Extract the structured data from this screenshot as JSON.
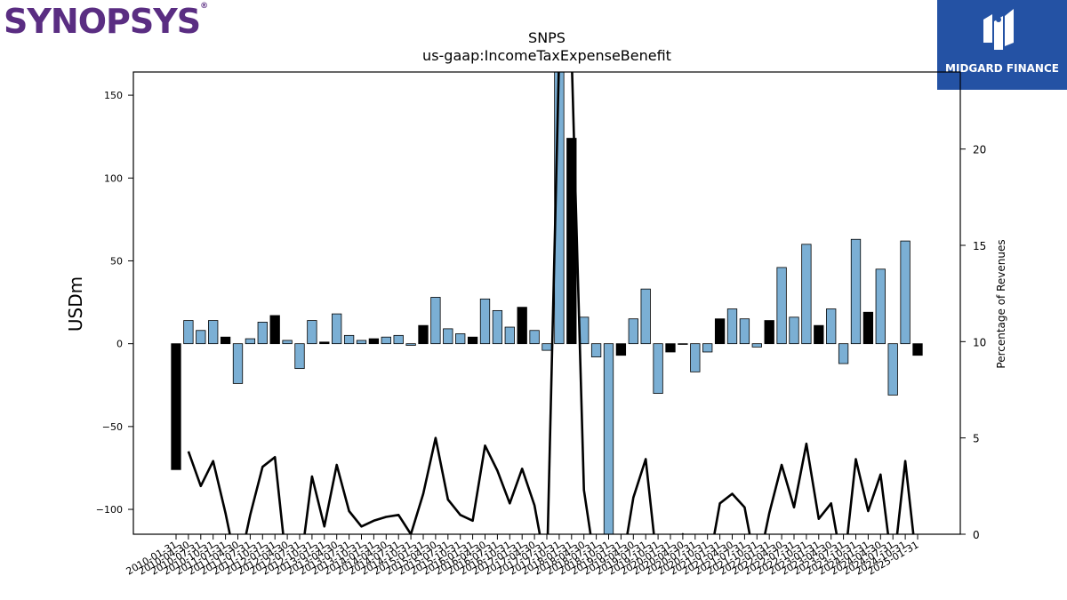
{
  "header": {
    "company_logo_text": "SYNOPSYS",
    "company_logo_mark": "®",
    "badge_text": "MIDGARD FINANCE"
  },
  "chart_data": {
    "type": "bar",
    "title": "SNPS",
    "subtitle": "us-gaap:IncomeTaxExpenseBenefit",
    "ylabel": "USDm",
    "y2label": "Percentage of Revenues",
    "ylim": [
      -115,
      164
    ],
    "y2lim": [
      0,
      24
    ],
    "yticks": [
      -100,
      -50,
      0,
      50,
      100,
      150
    ],
    "ytick_labels": [
      "−100",
      "−50",
      "0",
      "50",
      "100",
      "150"
    ],
    "y2ticks": [
      0,
      5,
      10,
      15,
      20
    ],
    "categories": [
      "2010-01-31",
      "2010-04-30",
      "2010-07-31",
      "2010-10-31",
      "2011-01-31",
      "2011-04-30",
      "2011-07-31",
      "2011-10-31",
      "2012-01-31",
      "2012-04-30",
      "2012-07-31",
      "2012-10-31",
      "2013-01-31",
      "2013-04-30",
      "2013-07-31",
      "2013-10-31",
      "2014-01-31",
      "2014-04-30",
      "2014-07-31",
      "2014-10-31",
      "2015-01-31",
      "2015-04-30",
      "2015-07-31",
      "2015-10-31",
      "2016-01-31",
      "2016-04-30",
      "2016-07-31",
      "2016-10-31",
      "2017-01-31",
      "2017-04-30",
      "2017-07-31",
      "2017-10-31",
      "2018-01-31",
      "2018-04-30",
      "2018-07-31",
      "2018-10-31",
      "2019-01-31",
      "2019-04-30",
      "2019-07-31",
      "2019-10-31",
      "2020-01-31",
      "2020-04-30",
      "2020-07-31",
      "2020-10-31",
      "2021-01-31",
      "2021-04-30",
      "2021-07-31",
      "2021-10-31",
      "2022-01-31",
      "2022-04-30",
      "2022-07-31",
      "2022-10-31",
      "2023-01-31",
      "2023-04-30",
      "2023-07-31",
      "2023-10-31",
      "2024-01-31",
      "2024-04-30",
      "2024-07-31",
      "2024-10-31",
      "2025-01-31"
    ],
    "xtick_labels": [
      "2010-01-31",
      "2010-04-30",
      "2010-07-31",
      "2010-10-31",
      "2011-01-31",
      "2011-04-30",
      "2011-07-31",
      "2011-10-31",
      "2012-01-31",
      "2012-04-30",
      "2012-07-31",
      "2012-10-31",
      "2013-01-31",
      "2013-04-30",
      "2013-07-31",
      "2013-10-31",
      "2014-01-31",
      "2014-04-30",
      "2014-07-31",
      "2014-10-31",
      "2015-01-31",
      "2015-04-30",
      "2015-07-31",
      "2015-10-31",
      "2016-01-31",
      "2016-04-30",
      "2016-07-31",
      "2016-10-31",
      "2017-01-31",
      "2017-04-30",
      "2017-07-31",
      "2017-10-31",
      "2018-01-31",
      "2018-04-30",
      "2018-07-31",
      "2018-10-31",
      "2019-01-31",
      "2019-04-30",
      "2019-07-31",
      "2019-10-31",
      "2020-01-31",
      "2020-04-30",
      "2020-07-31",
      "2020-10-31",
      "2021-01-31",
      "2021-04-30",
      "2021-07-31",
      "2021-10-31",
      "2022-01-31",
      "2022-04-30",
      "2022-07-31",
      "2022-10-31",
      "2023-01-31",
      "2023-04-30",
      "2023-07-31",
      "2023-10-31",
      "2024-01-31",
      "2024-04-30",
      "2024-07-31",
      "2024-10-31",
      "2025-01-31"
    ],
    "bar_series": {
      "values": [
        -76,
        14,
        8,
        14,
        4,
        -24,
        3,
        13,
        17,
        2,
        -15,
        14,
        1,
        18,
        5,
        2,
        3,
        4,
        5,
        -1,
        11,
        28,
        9,
        6,
        4,
        27,
        20,
        10,
        22,
        8,
        -4,
        200,
        124,
        16,
        -8,
        -130,
        -7,
        15,
        33,
        -30,
        -5,
        0,
        -17,
        -5,
        15,
        21,
        15,
        -2,
        14,
        46,
        16,
        60,
        11,
        21,
        -12,
        63,
        19,
        45,
        -31,
        62,
        -7
      ],
      "color_positive": "#7bafd4",
      "color_negative": "#7bafd4",
      "color_q4": "#000000",
      "q4_flags": [
        1,
        0,
        0,
        0,
        1,
        0,
        0,
        0,
        1,
        0,
        0,
        0,
        1,
        0,
        0,
        0,
        1,
        0,
        0,
        0,
        1,
        0,
        0,
        0,
        1,
        0,
        0,
        0,
        1,
        0,
        0,
        0,
        1,
        0,
        0,
        0,
        1,
        0,
        0,
        0,
        1,
        0,
        0,
        0,
        1,
        0,
        0,
        0,
        1,
        0,
        0,
        0,
        1,
        0,
        0,
        0,
        1,
        0,
        0,
        0,
        1
      ]
    },
    "line_series": {
      "values": [
        null,
        4.3,
        2.5,
        3.8,
        1.1,
        -2,
        1.0,
        3.5,
        4.0,
        -2,
        -2,
        3.0,
        0.4,
        3.6,
        1.2,
        0.4,
        0.7,
        0.9,
        1.0,
        0,
        2.1,
        5.0,
        1.8,
        1.0,
        0.7,
        4.6,
        3.3,
        1.6,
        3.4,
        1.5,
        -2,
        25,
        25,
        2.3,
        -2,
        -2,
        -2,
        1.9,
        3.9,
        -2,
        -2,
        0.0,
        -2,
        -2,
        1.6,
        2.1,
        1.4,
        -2,
        1.1,
        3.6,
        1.4,
        4.7,
        0.8,
        1.6,
        -2,
        3.9,
        1.2,
        3.1,
        -2,
        3.8,
        -2
      ],
      "color": "#000000"
    },
    "grid": false
  }
}
